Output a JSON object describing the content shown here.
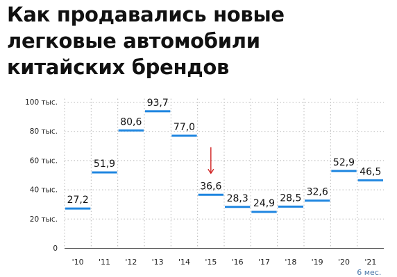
{
  "title_lines": [
    "Как продавались новые",
    "легковые автомобили",
    "китайских брендов"
  ],
  "chart_data": {
    "type": "bar",
    "title": "Как продавались новые легковые автомобили китайских брендов",
    "categories": [
      "'10",
      "'11",
      "'12",
      "'13",
      "'14",
      "'15",
      "'16",
      "'17",
      "'18",
      "'19",
      "'20",
      "'21"
    ],
    "values": [
      27.2,
      51.9,
      80.6,
      93.7,
      77.0,
      36.6,
      28.3,
      24.9,
      28.5,
      32.6,
      52.9,
      46.5
    ],
    "value_labels": [
      "27,2",
      "51,9",
      "80,6",
      "93,7",
      "77,0",
      "36,6",
      "28,3",
      "24,9",
      "28,5",
      "32,6",
      "52,9",
      "46,5"
    ],
    "ylim": [
      0,
      100
    ],
    "yticks": [
      0,
      20,
      40,
      60,
      80,
      100
    ],
    "ytick_labels": [
      "0",
      "20 тыс.",
      "40 тыс.",
      "60 тыс.",
      "80 тыс.",
      "100 тыс."
    ],
    "grid": true,
    "annotation": {
      "text": "6 мес.",
      "category": "'21"
    },
    "arrow_at_category": "'15",
    "mark_color": "#1f86e0",
    "arrow_color": "#d02020",
    "grid_color": "#b8b8b8"
  }
}
